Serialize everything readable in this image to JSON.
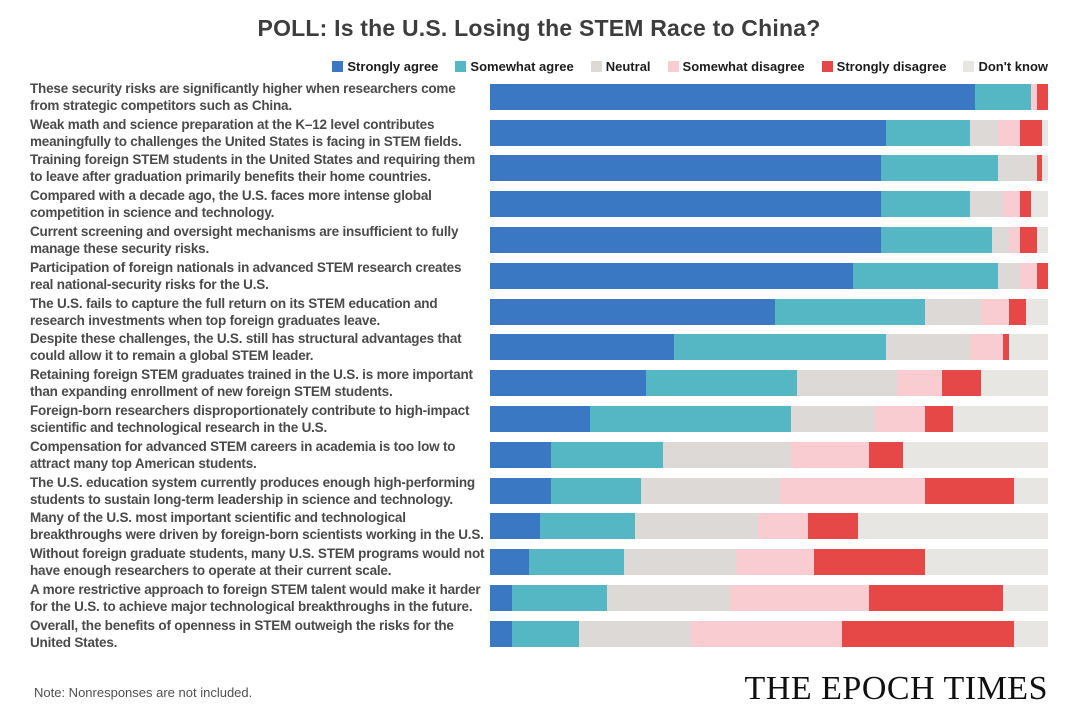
{
  "title": "POLL: Is the U.S. Losing the STEM Race to China?",
  "note": "Note: Nonresponses are not included.",
  "branding": "THE EPOCH TIMES",
  "chart_data": {
    "type": "bar",
    "orientation": "horizontal-stacked",
    "unit": "percent",
    "xlim": [
      0,
      100
    ],
    "grid": false,
    "legend_position": "top-right",
    "series_names": [
      "Strongly agree",
      "Somewhat agree",
      "Neutral",
      "Somewhat disagree",
      "Strongly disagree",
      "Don't know"
    ],
    "colors": [
      "#3b78c4",
      "#56b7c4",
      "#dcd9d6",
      "#f8ccd0",
      "#e64747",
      "#e8e6e3"
    ],
    "rows": [
      {
        "label": "These security risks are significantly higher when researchers come from strategic competitors such as China.",
        "values": [
          87,
          10,
          0,
          1,
          2,
          0
        ]
      },
      {
        "label": "Weak math and science preparation at the K–12 level contributes meaningfully to challenges the United States is facing in STEM fields.",
        "values": [
          71,
          15,
          5,
          4,
          4,
          1
        ]
      },
      {
        "label": "Training foreign STEM students in the United States and requiring them to leave after graduation primarily benefits their home countries.",
        "values": [
          70,
          21,
          7,
          0,
          1,
          1
        ]
      },
      {
        "label": "Compared with a decade ago, the U.S. faces more intense global competition in science and technology.",
        "values": [
          70,
          16,
          6,
          3,
          2,
          3
        ]
      },
      {
        "label": "Current screening and oversight mechanisms are insufficient to fully manage these security risks.",
        "values": [
          70,
          20,
          3,
          2,
          3,
          2
        ]
      },
      {
        "label": "Participation of foreign nationals in advanced STEM research creates real national-security risks for the U.S.",
        "values": [
          65,
          26,
          4,
          3,
          2,
          0
        ]
      },
      {
        "label": "The U.S. fails to capture the full return on its STEM education and research investments when top foreign graduates leave.",
        "values": [
          51,
          27,
          10,
          5,
          3,
          4
        ]
      },
      {
        "label": "Despite these challenges, the U.S. still has structural advantages that could allow it to remain a global STEM leader.",
        "values": [
          33,
          38,
          15,
          6,
          1,
          7
        ]
      },
      {
        "label": "Retaining foreign STEM graduates trained in the U.S. is more important than expanding enrollment of new foreign STEM students.",
        "values": [
          28,
          27,
          18,
          8,
          7,
          12
        ]
      },
      {
        "label": "Foreign-born researchers disproportionately contribute to high-impact scientific and technological research in the U.S.",
        "values": [
          18,
          36,
          15,
          9,
          5,
          17
        ]
      },
      {
        "label": "Compensation for advanced STEM careers in academia is too low to attract many top American students.",
        "values": [
          11,
          20,
          23,
          14,
          6,
          26
        ]
      },
      {
        "label": "The U.S. education system currently produces enough high-performing students to sustain long-term leadership in science and technology.",
        "values": [
          11,
          16,
          25,
          26,
          16,
          6
        ]
      },
      {
        "label": "Many of the U.S. most important scientific and technological breakthroughs were driven by foreign-born scientists working in the U.S.",
        "values": [
          9,
          17,
          22,
          9,
          9,
          34
        ]
      },
      {
        "label": "Without foreign graduate students, many U.S. STEM programs would not have enough researchers to operate at their current scale.",
        "values": [
          7,
          17,
          20,
          14,
          20,
          22
        ]
      },
      {
        "label": "A more restrictive approach to foreign STEM talent would make it harder for the U.S. to achieve major technological breakthroughs in the future.",
        "values": [
          4,
          17,
          22,
          25,
          24,
          8
        ]
      },
      {
        "label": "Overall, the benefits of openness in STEM outweigh the risks for the United States.",
        "values": [
          4,
          12,
          20,
          27,
          31,
          6
        ]
      }
    ]
  }
}
